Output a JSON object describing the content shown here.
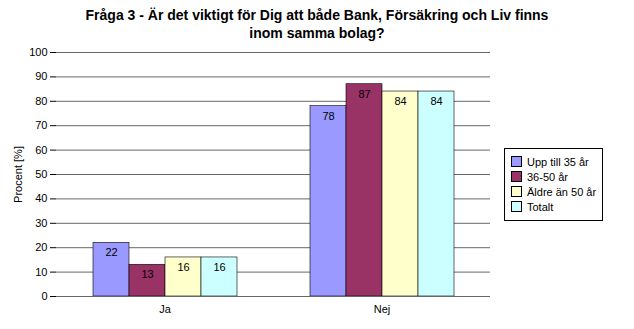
{
  "chart_data": {
    "type": "bar",
    "title": "Fråga 3 - Är det viktigt för Dig att både Bank, Försäkring och Liv finns inom samma bolag?",
    "y_label": "Procent [%]",
    "categories": [
      "Ja",
      "Nej"
    ],
    "series": [
      {
        "name": "Upp till 35 år",
        "color": "#9999ff",
        "values": [
          22,
          78
        ]
      },
      {
        "name": "36-50 år",
        "color": "#993366",
        "values": [
          13,
          87
        ]
      },
      {
        "name": "Äldre än 50 år",
        "color": "#ffffcc",
        "values": [
          16,
          84
        ]
      },
      {
        "name": "Totalt",
        "color": "#ccffff",
        "values": [
          16,
          84
        ]
      }
    ],
    "ylim": [
      0,
      100
    ],
    "yticks": [
      0,
      10,
      20,
      30,
      40,
      50,
      60,
      70,
      80,
      90,
      100
    ],
    "grid": true,
    "data_labels": true,
    "legend": "right"
  }
}
